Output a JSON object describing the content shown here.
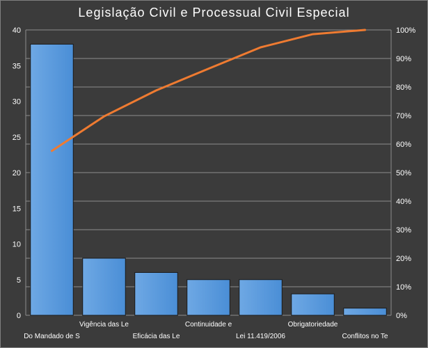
{
  "chart_data": {
    "type": "bar",
    "title": "Legislação Civil e Processual Civil Especial",
    "categories": [
      "Do Mandado de S",
      "Vigência das Le",
      "Eficácia das Le",
      "Continuidade e",
      "Lei 11.419/2006",
      "Obrigatoriedade",
      "Conflitos no Te"
    ],
    "series": [
      {
        "values": [
          38,
          8,
          6,
          5,
          5,
          3,
          1
        ]
      }
    ],
    "secondary_series": {
      "type": "line",
      "axis": "right",
      "values": [
        57.6,
        69.7,
        78.8,
        86.4,
        93.9,
        98.5,
        100
      ]
    },
    "ylim": [
      0,
      40
    ],
    "yticks": [
      0,
      5,
      10,
      15,
      20,
      25,
      30,
      35,
      40
    ],
    "y2lim": [
      0,
      100
    ],
    "y2ticks": [
      "0%",
      "10%",
      "20%",
      "30%",
      "40%",
      "50%",
      "60%",
      "70%",
      "80%",
      "90%",
      "100%"
    ],
    "grid": true,
    "colors": {
      "bar": "#4a8ed6",
      "bar_top": "#6ea8e4",
      "line": "#ef7b31",
      "grid": "#8c8c8c",
      "background": "#3b3b3b"
    }
  }
}
